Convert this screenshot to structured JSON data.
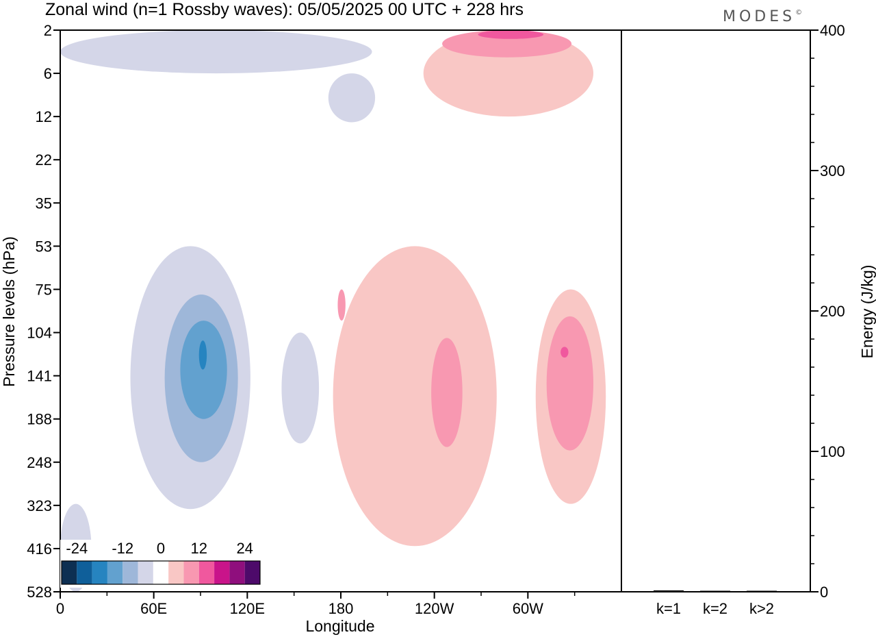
{
  "title": "Zonal wind (n=1 Rossby waves):  05/05/2025  00 UTC  + 228 hrs",
  "brand": "MODES",
  "brand_mark": "©",
  "chart_data": [
    {
      "type": "heatmap",
      "title": "Zonal wind (n=1 Rossby waves):  05/05/2025  00 UTC  + 228 hrs",
      "xlabel": "Longitude",
      "ylabel": "Pressure levels (hPa)",
      "x_ticks": [
        "0",
        "60E",
        "120E",
        "180",
        "120W",
        "60W"
      ],
      "x_tick_degrees": [
        0,
        60,
        120,
        180,
        240,
        300
      ],
      "x_range_degrees": [
        0,
        360
      ],
      "y_ticks": [
        "2",
        "6",
        "12",
        "22",
        "35",
        "53",
        "75",
        "104",
        "141",
        "188",
        "248",
        "323",
        "416",
        "528"
      ],
      "colorbar": {
        "labels": [
          "-24",
          "-12",
          "0",
          "12",
          "24"
        ],
        "colors": [
          "#0d2f52",
          "#0f5f9a",
          "#2684c0",
          "#62a1cf",
          "#9eb7d9",
          "#d4d6e8",
          "#ffffff",
          "#f9c7c5",
          "#f898b1",
          "#f0589e",
          "#c9148a",
          "#8f0f7d",
          "#4d0a6a"
        ]
      },
      "regions": [
        {
          "level": "-1",
          "lon": [
            45,
            122
          ],
          "p_hpa": [
            53,
            330
          ]
        },
        {
          "level": "-2",
          "lon": [
            67,
            114
          ],
          "p_hpa": [
            78,
            248
          ]
        },
        {
          "level": "-3",
          "lon": [
            77,
            107
          ],
          "p_hpa": [
            95,
            188
          ]
        },
        {
          "level": "-4",
          "lon": [
            89,
            94
          ],
          "p_hpa": [
            110,
            135
          ]
        },
        {
          "level": "-1",
          "lon": [
            142,
            166
          ],
          "p_hpa": [
            104,
            220
          ]
        },
        {
          "level": "-1",
          "lon": [
            172,
            202
          ],
          "p_hpa": [
            6,
            13
          ]
        },
        {
          "level": "-1",
          "lon": [
            0,
            20
          ],
          "p_hpa": [
            320,
            528
          ]
        },
        {
          "level": "-1",
          "lon": [
            0,
            200
          ],
          "p_hpa": [
            2,
            6
          ]
        },
        {
          "level": "1",
          "lon": [
            175,
            280
          ],
          "p_hpa": [
            53,
            410
          ]
        },
        {
          "level": "2",
          "lon": [
            178,
            183
          ],
          "p_hpa": [
            75,
            95
          ]
        },
        {
          "level": "2",
          "lon": [
            238,
            258
          ],
          "p_hpa": [
            108,
            225
          ]
        },
        {
          "level": "1",
          "lon": [
            305,
            350
          ],
          "p_hpa": [
            75,
            320
          ]
        },
        {
          "level": "2",
          "lon": [
            312,
            342
          ],
          "p_hpa": [
            92,
            230
          ]
        },
        {
          "level": "3",
          "lon": [
            321,
            326
          ],
          "p_hpa": [
            115,
            124
          ]
        },
        {
          "level": "1",
          "lon": [
            233,
            342
          ],
          "p_hpa": [
            2,
            12
          ]
        },
        {
          "level": "2",
          "lon": [
            245,
            328
          ],
          "p_hpa": [
            2,
            4
          ]
        },
        {
          "level": "3",
          "lon": [
            268,
            310
          ],
          "p_hpa": [
            2,
            2.5
          ]
        }
      ]
    },
    {
      "type": "bar",
      "ylabel": "Energy (J/kg)",
      "categories": [
        "k=1",
        "k=2",
        "k>2"
      ],
      "values": [
        1,
        0.5,
        0.5
      ],
      "ylim": [
        0,
        400
      ],
      "y_ticks": [
        0,
        100,
        200,
        300,
        400
      ]
    }
  ]
}
